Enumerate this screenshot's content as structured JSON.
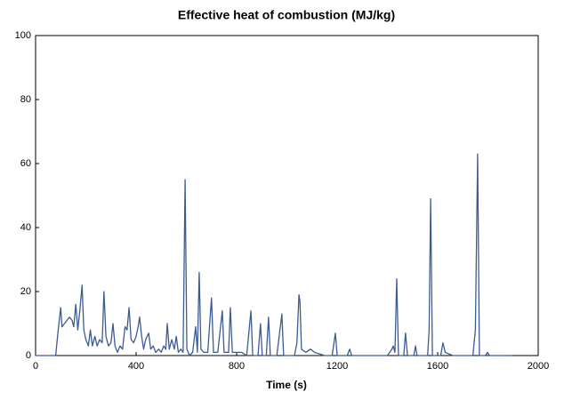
{
  "chart_data": {
    "type": "line",
    "title": "Effective heat of combustion (MJ/kg)",
    "x_label": "Time (s)",
    "series": [
      {
        "name": "Effective heat of combustion",
        "color": "#3b5b94",
        "x": [
          0,
          80,
          90,
          100,
          105,
          115,
          125,
          135,
          145,
          152,
          160,
          168,
          176,
          185,
          192,
          200,
          210,
          218,
          226,
          236,
          245,
          255,
          265,
          272,
          280,
          290,
          300,
          308,
          316,
          326,
          336,
          346,
          356,
          364,
          372,
          380,
          390,
          400,
          408,
          414,
          422,
          430,
          438,
          450,
          458,
          468,
          478,
          490,
          500,
          510,
          518,
          524,
          532,
          542,
          552,
          560,
          568,
          578,
          587,
          595,
          602,
          612,
          625,
          637,
          644,
          651,
          658,
          670,
          685,
          700,
          708,
          725,
          743,
          750,
          768,
          775,
          783,
          800,
          820,
          840,
          857,
          864,
          885,
          895,
          902,
          918,
          927,
          934,
          960,
          980,
          987,
          1030,
          1040,
          1048,
          1052,
          1058,
          1075,
          1094,
          1110,
          1150,
          1180,
          1193,
          1200,
          1240,
          1250,
          1258,
          1300,
          1350,
          1400,
          1418,
          1423,
          1430,
          1437,
          1444,
          1465,
          1472,
          1480,
          1505,
          1512,
          1518,
          1560,
          1566,
          1572,
          1579,
          1612,
          1621,
          1630,
          1660,
          1740,
          1750,
          1759,
          1766,
          1790,
          1798,
          1806,
          1894
        ],
        "values": [
          0,
          0,
          8,
          15,
          9,
          10,
          11,
          12,
          11,
          9,
          16,
          8,
          14,
          22,
          8,
          5,
          3,
          8,
          3,
          6,
          3,
          5,
          4,
          20,
          6,
          3,
          4,
          10,
          3,
          1,
          3,
          2,
          9,
          8,
          15,
          5,
          4,
          6,
          9,
          12,
          6,
          2,
          5,
          7,
          2,
          3,
          1,
          2,
          1,
          3,
          2,
          10,
          2,
          5,
          2,
          6,
          1,
          2,
          1,
          55,
          2,
          0,
          1,
          9,
          1,
          26,
          2,
          1,
          1,
          18,
          1,
          1,
          14,
          1,
          1,
          15,
          1,
          1,
          1,
          0,
          14,
          0,
          0,
          10,
          0,
          0,
          12,
          0,
          0,
          13,
          0,
          0,
          4,
          19,
          17,
          2,
          1,
          2,
          1,
          0,
          0,
          7,
          0,
          0,
          2,
          0,
          0,
          0,
          0,
          2,
          3,
          1,
          24,
          0,
          0,
          7,
          0,
          0,
          3,
          0,
          0,
          8,
          49,
          0,
          0,
          4,
          1,
          0,
          0,
          8,
          63,
          0,
          0,
          1,
          0,
          0
        ]
      }
    ],
    "xlim": [
      0,
      2000
    ],
    "xticks": [
      0,
      400,
      800,
      1200,
      1600,
      2000
    ],
    "ylim": [
      0,
      100
    ],
    "yticks": [
      0,
      20,
      40,
      60,
      80,
      100
    ],
    "grid": false
  }
}
